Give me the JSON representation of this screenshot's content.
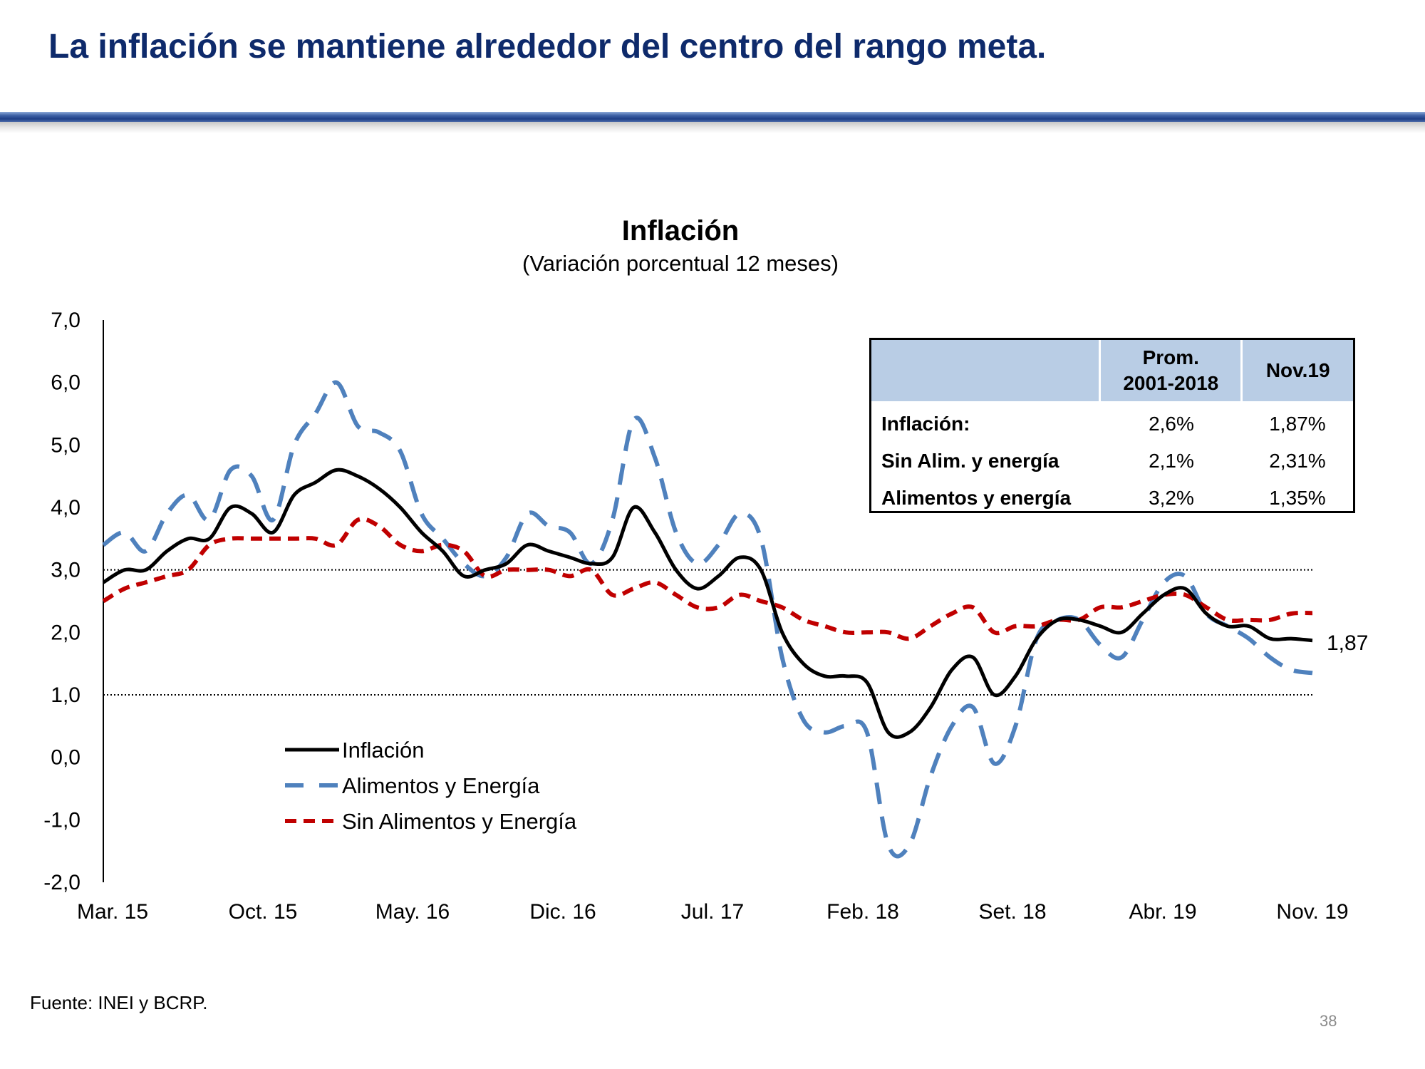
{
  "slide": {
    "title": "La inflación se mantiene alrededor del centro del rango meta.",
    "source": "Fuente: INEI y BCRP.",
    "page_number": "38"
  },
  "colors": {
    "title": "#0e2a6b",
    "inflacion": "#000000",
    "alimentos": "#4f81bd",
    "sin_alimentos": "#c00000",
    "table_header": "#b9cde5"
  },
  "table": {
    "headers": [
      "",
      "Prom.\n2001-2018",
      "Nov.19"
    ],
    "rows": [
      {
        "label": "Inflación:",
        "prom": "2,6%",
        "nov": "1,87%"
      },
      {
        "label": "Sin Alim. y energía",
        "prom": "2,1%",
        "nov": "2,31%"
      },
      {
        "label": "Alimentos y energía",
        "prom": "3,2%",
        "nov": "1,35%"
      }
    ]
  },
  "chart_data": {
    "type": "line",
    "title": "Inflación",
    "subtitle": "(Variación porcentual 12 meses)",
    "xlabel": "",
    "ylabel": "",
    "ylim": [
      -2.0,
      7.0
    ],
    "yticks": [
      "7,0",
      "6,0",
      "5,0",
      "4,0",
      "3,0",
      "2,0",
      "1,0",
      "0,0",
      "-1,0",
      "-2,0"
    ],
    "x_tick_labels": [
      "Mar. 15",
      "Oct. 15",
      "May. 16",
      "Dic. 16",
      "Jul. 17",
      "Feb. 18",
      "Set. 18",
      "Abr. 19",
      "Nov. 19"
    ],
    "target_range": [
      1.0,
      3.0
    ],
    "end_label": "1,87",
    "legend": [
      "Inflación",
      "Alimentos y Energía",
      "Sin Alimentos y Energía"
    ],
    "series": [
      {
        "name": "Inflación",
        "style": "solid",
        "values": [
          2.8,
          3.0,
          3.0,
          3.3,
          3.5,
          3.5,
          4.0,
          3.9,
          3.6,
          4.2,
          4.4,
          4.6,
          4.5,
          4.3,
          4.0,
          3.6,
          3.3,
          2.9,
          3.0,
          3.1,
          3.4,
          3.3,
          3.2,
          3.1,
          3.2,
          4.0,
          3.6,
          3.0,
          2.7,
          2.9,
          3.2,
          3.0,
          2.0,
          1.5,
          1.3,
          1.3,
          1.2,
          0.4,
          0.4,
          0.8,
          1.4,
          1.6,
          1.0,
          1.3,
          1.9,
          2.2,
          2.2,
          2.1,
          2.0,
          2.3,
          2.6,
          2.7,
          2.3,
          2.1,
          2.1,
          1.9,
          1.9,
          1.87
        ]
      },
      {
        "name": "Alimentos y Energía",
        "style": "dashed",
        "values": [
          3.4,
          3.6,
          3.3,
          3.9,
          4.2,
          3.8,
          4.6,
          4.5,
          3.8,
          5.0,
          5.5,
          6.0,
          5.3,
          5.2,
          4.9,
          3.9,
          3.5,
          3.1,
          2.9,
          3.2,
          3.9,
          3.7,
          3.6,
          3.1,
          3.8,
          5.4,
          4.8,
          3.6,
          3.1,
          3.4,
          3.9,
          3.5,
          1.6,
          0.6,
          0.4,
          0.5,
          0.4,
          -1.4,
          -1.4,
          -0.3,
          0.5,
          0.8,
          -0.1,
          0.5,
          1.9,
          2.2,
          2.2,
          1.8,
          1.6,
          2.2,
          2.8,
          2.9,
          2.3,
          2.1,
          1.9,
          1.6,
          1.4,
          1.35
        ]
      },
      {
        "name": "Sin Alimentos y Energía",
        "style": "dashed",
        "values": [
          2.5,
          2.7,
          2.8,
          2.9,
          3.0,
          3.4,
          3.5,
          3.5,
          3.5,
          3.5,
          3.5,
          3.4,
          3.8,
          3.7,
          3.4,
          3.3,
          3.4,
          3.3,
          2.9,
          3.0,
          3.0,
          3.0,
          2.9,
          3.0,
          2.6,
          2.7,
          2.8,
          2.6,
          2.4,
          2.4,
          2.6,
          2.5,
          2.4,
          2.2,
          2.1,
          2.0,
          2.0,
          2.0,
          1.9,
          2.1,
          2.3,
          2.4,
          2.0,
          2.1,
          2.1,
          2.2,
          2.2,
          2.4,
          2.4,
          2.5,
          2.6,
          2.6,
          2.4,
          2.2,
          2.2,
          2.2,
          2.3,
          2.31
        ]
      }
    ]
  }
}
